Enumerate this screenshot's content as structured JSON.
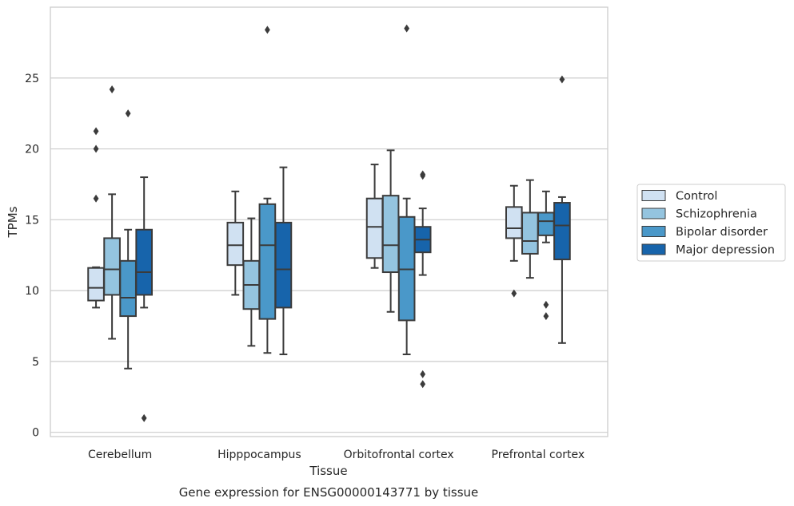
{
  "caption": "Gene expression for ENSG00000143771 by tissue",
  "chart_data": {
    "type": "box",
    "title": "",
    "xlabel": "Tissue",
    "ylabel": "TPMs",
    "ylim": [
      -0.3,
      30
    ],
    "yticks": [
      0,
      5,
      10,
      15,
      20,
      25
    ],
    "grid": true,
    "legend_position": "outside-right",
    "categories": [
      "Cerebellum",
      "Hipppocampus",
      "Orbitofrontal cortex",
      "Prefrontal cortex"
    ],
    "series": [
      {
        "name": "Control",
        "color": "#d0e1f2",
        "boxes": [
          {
            "whislo": 8.8,
            "q1": 9.3,
            "med": 10.2,
            "q3": 11.6,
            "whishi": 11.65,
            "fliers": [
              16.5,
              20.0,
              21.25
            ]
          },
          {
            "whislo": 9.7,
            "q1": 11.8,
            "med": 13.2,
            "q3": 14.8,
            "whishi": 17.0,
            "fliers": []
          },
          {
            "whislo": 11.6,
            "q1": 12.3,
            "med": 14.5,
            "q3": 16.5,
            "whishi": 18.9,
            "fliers": []
          },
          {
            "whislo": 12.1,
            "q1": 13.7,
            "med": 14.4,
            "q3": 15.9,
            "whishi": 17.4,
            "fliers": [
              9.8
            ]
          }
        ]
      },
      {
        "name": "Schizophrenia",
        "color": "#94c4df",
        "boxes": [
          {
            "whislo": 6.6,
            "q1": 9.7,
            "med": 11.5,
            "q3": 13.7,
            "whishi": 16.8,
            "fliers": [
              24.2
            ]
          },
          {
            "whislo": 6.1,
            "q1": 8.7,
            "med": 10.4,
            "q3": 12.1,
            "whishi": 15.1,
            "fliers": []
          },
          {
            "whislo": 8.5,
            "q1": 11.3,
            "med": 13.2,
            "q3": 16.7,
            "whishi": 19.9,
            "fliers": []
          },
          {
            "whislo": 10.9,
            "q1": 12.6,
            "med": 13.5,
            "q3": 15.5,
            "whishi": 17.8,
            "fliers": []
          }
        ]
      },
      {
        "name": "Bipolar disorder",
        "color": "#4a98c9",
        "boxes": [
          {
            "whislo": 4.5,
            "q1": 8.2,
            "med": 9.5,
            "q3": 12.1,
            "whishi": 14.3,
            "fliers": [
              22.5
            ]
          },
          {
            "whislo": 5.6,
            "q1": 8.0,
            "med": 13.2,
            "q3": 16.1,
            "whishi": 16.5,
            "fliers": [
              28.4
            ]
          },
          {
            "whislo": 5.5,
            "q1": 7.9,
            "med": 11.5,
            "q3": 15.2,
            "whishi": 16.5,
            "fliers": [
              28.5
            ]
          },
          {
            "whislo": 13.4,
            "q1": 13.9,
            "med": 14.9,
            "q3": 15.5,
            "whishi": 17.0,
            "fliers": [
              9.0,
              8.2
            ]
          }
        ]
      },
      {
        "name": "Major depression",
        "color": "#1764ab",
        "boxes": [
          {
            "whislo": 8.8,
            "q1": 9.7,
            "med": 11.3,
            "q3": 14.3,
            "whishi": 18.0,
            "fliers": [
              1.0
            ]
          },
          {
            "whislo": 5.5,
            "q1": 8.8,
            "med": 11.5,
            "q3": 14.8,
            "whishi": 18.7,
            "fliers": []
          },
          {
            "whislo": 11.1,
            "q1": 12.7,
            "med": 13.6,
            "q3": 14.5,
            "whishi": 15.8,
            "fliers": [
              18.1,
              18.2,
              4.1,
              3.4
            ]
          },
          {
            "whislo": 6.3,
            "q1": 12.2,
            "med": 14.6,
            "q3": 16.2,
            "whishi": 16.6,
            "fliers": [
              24.9
            ]
          }
        ]
      }
    ]
  }
}
